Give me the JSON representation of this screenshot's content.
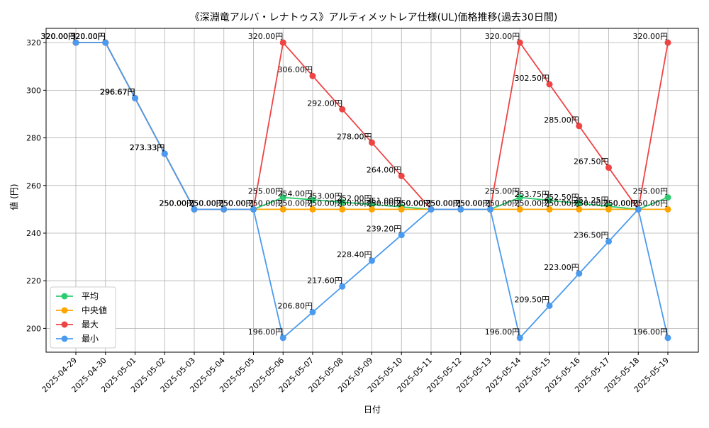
{
  "chart_data": {
    "type": "line",
    "title": "《深淵竜アルバ・レナトゥス》アルティメットレア仕様(UL)価格推移(過去30日間)",
    "xlabel": "日付",
    "ylabel": "値 (円)",
    "ylim": [
      190,
      326
    ],
    "yticks": [
      200,
      220,
      240,
      260,
      280,
      300,
      320
    ],
    "grid": true,
    "legend_position": "lower-left",
    "value_suffix": "円",
    "categories": [
      "2025-04-29",
      "2025-04-30",
      "2025-05-01",
      "2025-05-02",
      "2025-05-03",
      "2025-05-04",
      "2025-05-05",
      "2025-05-06",
      "2025-05-07",
      "2025-05-08",
      "2025-05-09",
      "2025-05-10",
      "2025-05-11",
      "2025-05-12",
      "2025-05-13",
      "2025-05-14",
      "2025-05-15",
      "2025-05-16",
      "2025-05-17",
      "2025-05-18",
      "2025-05-19"
    ],
    "series": [
      {
        "name": "平均",
        "color": "#2ecc71",
        "values": [
          320.0,
          320.0,
          296.67,
          273.33,
          250.0,
          250.0,
          250.0,
          255.0,
          254.0,
          253.0,
          252.0,
          251.0,
          250.0,
          250.0,
          250.0,
          255.0,
          253.75,
          252.5,
          251.25,
          250.0,
          255.0
        ]
      },
      {
        "name": "中央値",
        "color": "#ffa500",
        "values": [
          320.0,
          320.0,
          296.67,
          273.33,
          250.0,
          250.0,
          250.0,
          250.0,
          250.0,
          250.0,
          250.0,
          250.0,
          250.0,
          250.0,
          250.0,
          250.0,
          250.0,
          250.0,
          250.0,
          250.0,
          250.0
        ]
      },
      {
        "name": "最大",
        "color": "#ef4444",
        "values": [
          320.0,
          320.0,
          296.67,
          273.33,
          250.0,
          250.0,
          250.0,
          320.0,
          306.0,
          292.0,
          278.0,
          264.0,
          250.0,
          250.0,
          250.0,
          320.0,
          302.5,
          285.0,
          267.5,
          250.0,
          320.0
        ]
      },
      {
        "name": "最小",
        "color": "#4a9bef",
        "values": [
          320.0,
          320.0,
          296.67,
          273.33,
          250.0,
          250.0,
          250.0,
          196.0,
          206.8,
          217.6,
          228.4,
          239.2,
          250.0,
          250.0,
          250.0,
          196.0,
          209.5,
          223.0,
          236.5,
          250.0,
          196.0
        ]
      }
    ]
  }
}
